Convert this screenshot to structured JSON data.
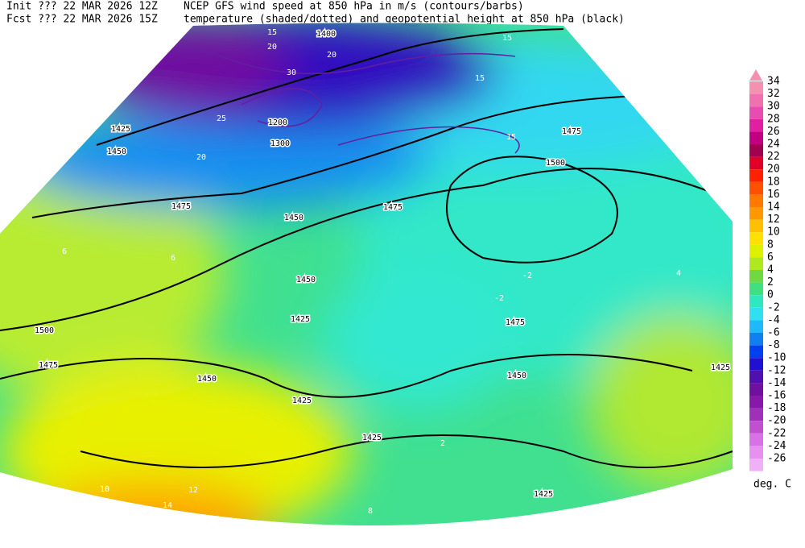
{
  "header": {
    "init": "Init  ??? 22 MAR 2026 12Z",
    "fcst": "Fcst  ??? 22 MAR 2026 15Z",
    "line1": "NCEP GFS wind speed at 850 hPa in m/s (contours/barbs)",
    "line2": "temperature (shaded/dotted) and geopotential height at 850 hPa (black)"
  },
  "legend": {
    "levels": [
      34,
      32,
      30,
      28,
      26,
      24,
      22,
      20,
      18,
      16,
      14,
      12,
      10,
      8,
      6,
      4,
      2,
      0,
      -2,
      -4,
      -6,
      -8,
      -10,
      -12,
      -14,
      -16,
      -18,
      -20,
      -22,
      -24,
      -26
    ],
    "colors": [
      "#f490b0",
      "#f070b0",
      "#e84cb0",
      "#e020a0",
      "#c00080",
      "#a00050",
      "#e00028",
      "#ff2000",
      "#ff5000",
      "#ff7800",
      "#ff9800",
      "#ffc000",
      "#ffe000",
      "#dcf000",
      "#b0e820",
      "#70d840",
      "#40e080",
      "#30e8c0",
      "#30e0f0",
      "#20b8f8",
      "#1080f0",
      "#0040f0",
      "#2010d0",
      "#5010b0",
      "#7010a0",
      "#8818a8",
      "#a030b8",
      "#c050d0",
      "#d870e8",
      "#e890f0",
      "#f0b0f8"
    ],
    "unit": "deg. C"
  },
  "map": {
    "height_labels": [
      "1500",
      "1475",
      "1450",
      "1475",
      "1425",
      "1425",
      "1450",
      "1475",
      "1500",
      "1475",
      "1450",
      "1425",
      "1425",
      "1450",
      "1425",
      "1425",
      "1450",
      "1475",
      "1300",
      "1200",
      "1400"
    ],
    "wind_labels": [
      "15",
      "20",
      "15",
      "15",
      "20",
      "25",
      "30",
      "15",
      "20"
    ],
    "temp_labels": [
      "10",
      "12",
      "14",
      "8",
      "-2",
      "-2",
      "6",
      "4",
      "6",
      "2"
    ]
  }
}
